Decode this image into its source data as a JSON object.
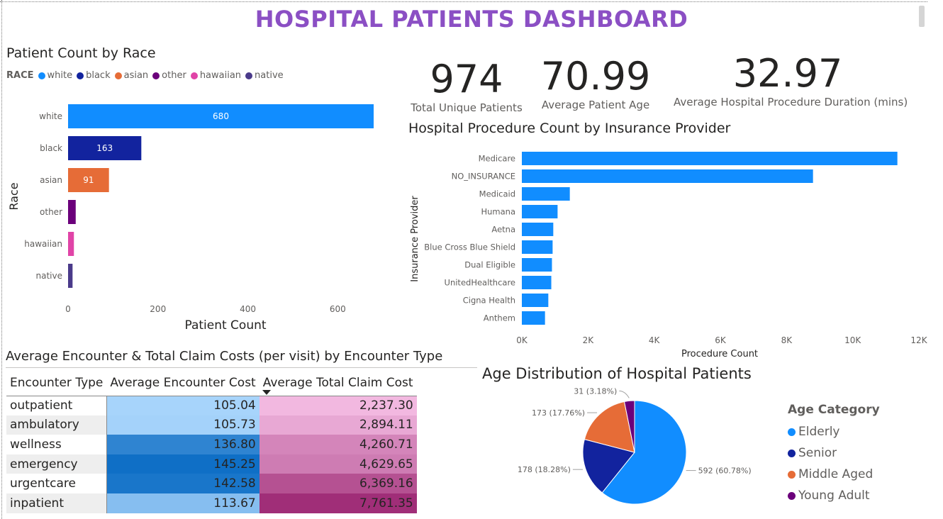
{
  "dashboard": {
    "title": "HOSPITAL PATIENTS DASHBOARD"
  },
  "colors": {
    "title": "#8b4fc4",
    "bar_blue": "#118dff",
    "avg_cost_scale": [
      "#a7d4fb",
      "#0f6fc6"
    ],
    "claim_cost_scale": [
      "#f2b8e0",
      "#a02e78"
    ]
  },
  "kpis": [
    {
      "value": "974",
      "label": "Total Unique Patients"
    },
    {
      "value": "70.99",
      "label": "Average Patient Age"
    },
    {
      "value": "32.97",
      "label": "Average Hospital Procedure Duration (mins)"
    }
  ],
  "race_chart": {
    "legend_title": "RACE",
    "legend": [
      {
        "name": "white",
        "color": "#118dff"
      },
      {
        "name": "black",
        "color": "#12239e"
      },
      {
        "name": "asian",
        "color": "#e66c37"
      },
      {
        "name": "other",
        "color": "#6b007b"
      },
      {
        "name": "hawaiian",
        "color": "#e044a7"
      },
      {
        "name": "native",
        "color": "#4a3a8a"
      }
    ]
  },
  "table": {
    "title": "Average Encounter & Total Claim Costs (per visit) by Encounter Type",
    "headers": [
      "Encounter Type",
      "Average Encounter Cost",
      "Average Total Claim Cost"
    ],
    "rows": [
      {
        "type": "outpatient",
        "avg": "105.04",
        "claim": "2,237.30"
      },
      {
        "type": "ambulatory",
        "avg": "105.73",
        "claim": "2,894.11"
      },
      {
        "type": "wellness",
        "avg": "136.80",
        "claim": "4,260.71"
      },
      {
        "type": "emergency",
        "avg": "145.25",
        "claim": "4,629.65"
      },
      {
        "type": "urgentcare",
        "avg": "142.58",
        "claim": "6,369.16"
      },
      {
        "type": "inpatient",
        "avg": "113.67",
        "claim": "7,761.35"
      }
    ]
  },
  "age_legend": {
    "title": "Age Category",
    "items": [
      {
        "name": "Elderly",
        "color": "#118dff"
      },
      {
        "name": "Senior",
        "color": "#12239e"
      },
      {
        "name": "Middle Aged",
        "color": "#e66c37"
      },
      {
        "name": "Young Adult",
        "color": "#6b007b"
      }
    ]
  },
  "chart_data": [
    {
      "type": "bar",
      "orientation": "horizontal",
      "title": "Patient Count by Race",
      "xlabel": "Patient Count",
      "ylabel": "Race",
      "categories": [
        "white",
        "black",
        "asian",
        "other",
        "hawaiian",
        "native"
      ],
      "values": [
        680,
        163,
        91,
        17,
        13,
        10
      ],
      "data_labels": [
        "680",
        "163",
        "91",
        "",
        "",
        ""
      ],
      "colors": [
        "#118dff",
        "#12239e",
        "#e66c37",
        "#6b007b",
        "#e044a7",
        "#4a3a8a"
      ],
      "xlim": [
        0,
        680
      ],
      "xticks": [
        0,
        200,
        400,
        600
      ]
    },
    {
      "type": "bar",
      "orientation": "horizontal",
      "title": "Hospital Procedure Count by Insurance Provider",
      "xlabel": "Procedure Count",
      "ylabel": "Insurance Provider",
      "categories": [
        "Medicare",
        "NO_INSURANCE",
        "Medicaid",
        "Humana",
        "Aetna",
        "Blue Cross Blue Shield",
        "Dual Eligible",
        "UnitedHealthcare",
        "Cigna Health",
        "Anthem"
      ],
      "values": [
        11350,
        8800,
        1450,
        1080,
        950,
        930,
        910,
        890,
        800,
        700
      ],
      "color": "#118dff",
      "xlim": [
        0,
        12000
      ],
      "xticks": [
        0,
        2000,
        4000,
        6000,
        8000,
        10000,
        12000
      ],
      "xtick_labels": [
        "0K",
        "2K",
        "4K",
        "6K",
        "8K",
        "10K",
        "12K"
      ]
    },
    {
      "type": "pie",
      "title": "Age Distribution of Hospital Patients",
      "legend_title": "Age Category",
      "slices": [
        {
          "name": "Elderly",
          "value": 592,
          "label": "592 (60.78%)",
          "color": "#118dff"
        },
        {
          "name": "Senior",
          "value": 178,
          "label": "178 (18.28%)",
          "color": "#12239e"
        },
        {
          "name": "Middle Aged",
          "value": 173,
          "label": "173 (17.76%)",
          "color": "#e66c37"
        },
        {
          "name": "Young Adult",
          "value": 31,
          "label": "31 (3.18%)",
          "color": "#6b007b"
        }
      ]
    }
  ]
}
